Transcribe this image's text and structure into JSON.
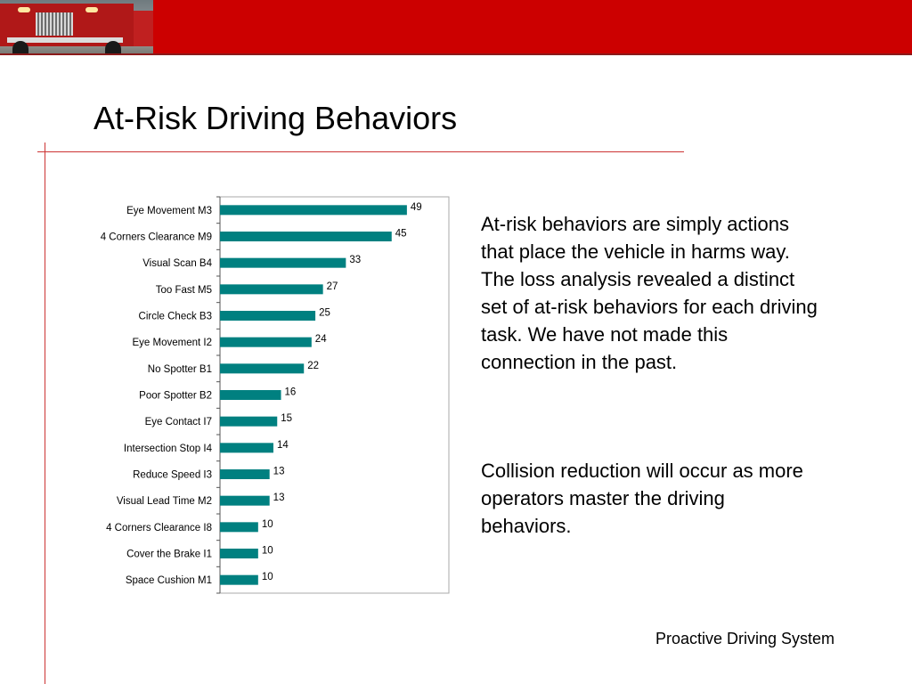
{
  "header": {
    "title": "At-Risk Driving Behaviors"
  },
  "body": {
    "paragraph_1": "At-risk behaviors are simply actions that place the vehicle in harms way.  The loss analysis revealed a distinct set of at-risk behaviors for each driving task. We have not made this connection in the past.",
    "paragraph_2": "Collision reduction will occur as more operators master the driving behaviors."
  },
  "footer": {
    "text": "Proactive Driving System"
  },
  "colors": {
    "banner": "#cc0000",
    "bar": "#008080",
    "rule": "#cc3333"
  },
  "chart_data": {
    "type": "bar",
    "orientation": "horizontal",
    "categories": [
      "Eye Movement M3",
      "4 Corners Clearance M9",
      "Visual Scan B4",
      "Too Fast M5",
      "Circle Check B3",
      "Eye Movement I2",
      "No Spotter B1",
      "Poor Spotter B2",
      "Eye Contact I7",
      "Intersection Stop I4",
      "Reduce Speed I3",
      "Visual Lead Time M2",
      "4 Corners Clearance I8",
      "Cover the Brake I1",
      "Space Cushion M1"
    ],
    "values": [
      49,
      45,
      33,
      27,
      25,
      24,
      22,
      16,
      15,
      14,
      13,
      13,
      10,
      10,
      10
    ],
    "title": "",
    "xlabel": "",
    "ylabel": "",
    "xlim": [
      0,
      60
    ],
    "grid": false,
    "legend": "none",
    "data_labels": true
  }
}
